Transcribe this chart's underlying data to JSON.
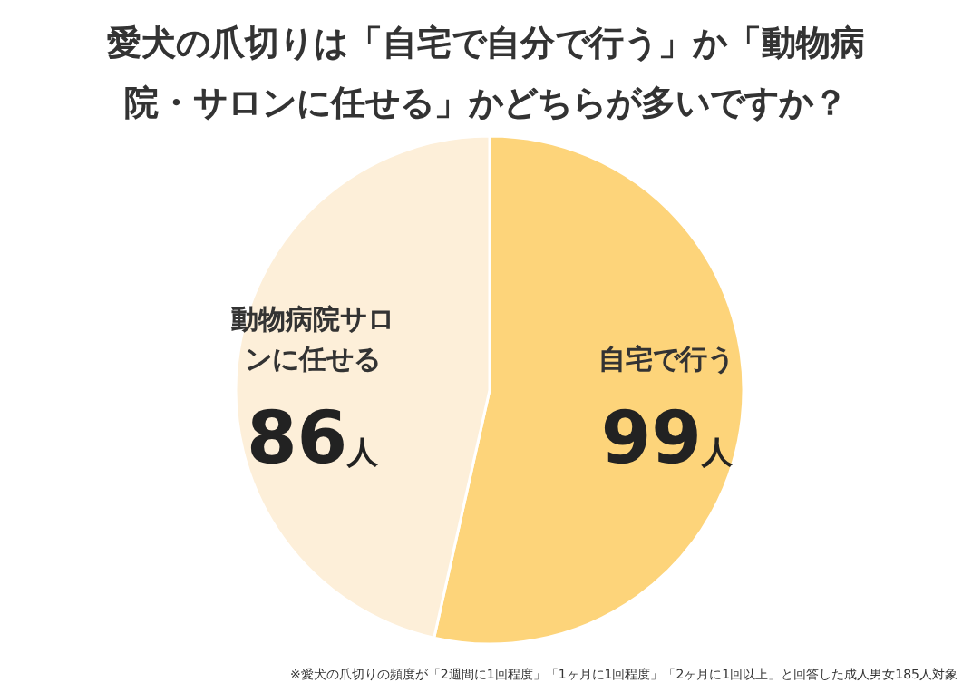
{
  "chart_data": {
    "type": "pie",
    "title": "愛犬の爪切りは「自宅で自分で行う」か「動物病院・サロンに任せる」かどちらが多いですか？",
    "categories": [
      "自宅で行う",
      "動物病院サロンに任せる"
    ],
    "values": [
      99,
      86
    ],
    "value_labels": [
      "99人",
      "86人"
    ],
    "colors": [
      "#fdd47a",
      "#fdefd9"
    ],
    "annotations": [
      "※愛犬の爪切りの頻度が「2週間に1回程度」「1ヶ月に1回程度」「2ヶ月に1回以上」と回答した成人男女185人対象"
    ]
  }
}
